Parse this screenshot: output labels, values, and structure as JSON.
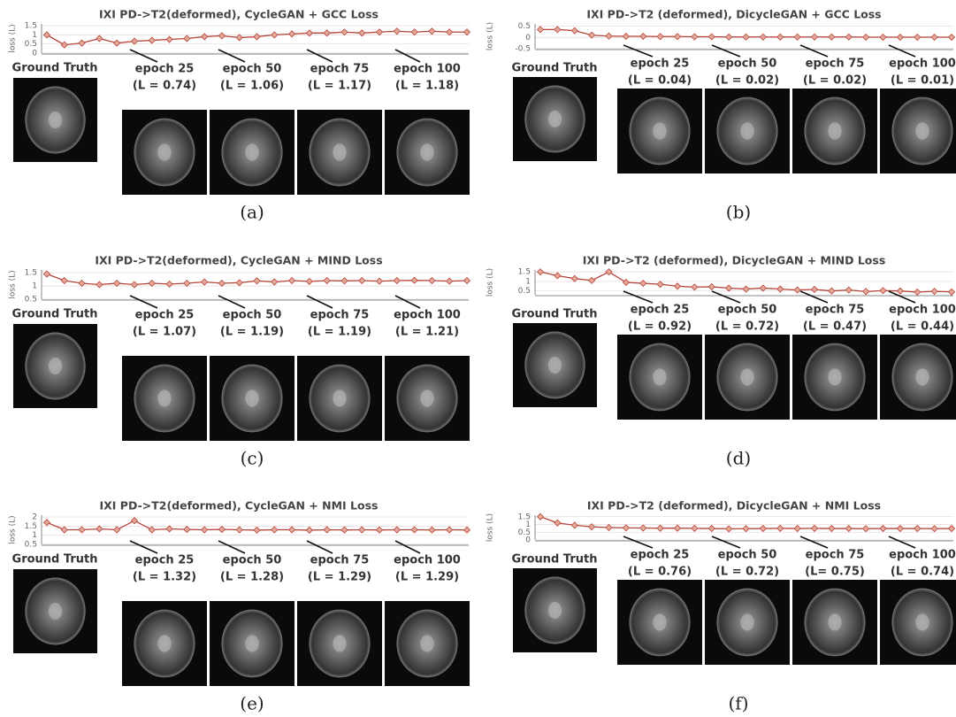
{
  "panels": [
    {
      "title": "IXI PD->T2(deformed), CycleGAN + GCC Loss",
      "ylabel": "loss (L)",
      "yticks": [
        0,
        0.5,
        1,
        1.5
      ],
      "ylim": [
        0,
        1.6
      ],
      "loss": [
        1.0,
        0.45,
        0.55,
        0.8,
        0.55,
        0.65,
        0.7,
        0.75,
        0.8,
        0.9,
        0.95,
        0.85,
        0.9,
        1.0,
        1.05,
        1.1,
        1.1,
        1.15,
        1.1,
        1.15,
        1.2,
        1.15,
        1.2,
        1.15,
        1.15
      ],
      "ground_truth": "Ground Truth",
      "epochs": [
        {
          "label": "epoch 25",
          "loss_label": "(L = 0.74)"
        },
        {
          "label": "epoch 50",
          "loss_label": "(L = 1.06)"
        },
        {
          "label": "epoch 75",
          "loss_label": "(L = 1.17)"
        },
        {
          "label": "epoch 100",
          "loss_label": "(L = 1.18)"
        }
      ],
      "caption": "(a)"
    },
    {
      "title": "IXI PD->T2 (deformed), DicycleGAN + GCC Loss",
      "ylabel": "loss (L)",
      "yticks": [
        -0.5,
        0,
        0.5
      ],
      "ylim": [
        -0.5,
        0.6
      ],
      "loss": [
        0.35,
        0.35,
        0.3,
        0.1,
        0.06,
        0.05,
        0.05,
        0.04,
        0.04,
        0.03,
        0.03,
        0.02,
        0.02,
        0.02,
        0.02,
        0.02,
        0.02,
        0.02,
        0.02,
        0.01,
        0.01,
        0.01,
        0.01,
        0.01,
        0.01
      ],
      "ground_truth": "Ground Truth",
      "epochs": [
        {
          "label": "epoch 25",
          "loss_label": "(L = 0.04)"
        },
        {
          "label": "epoch 50",
          "loss_label": "(L = 0.02)"
        },
        {
          "label": "epoch 75",
          "loss_label": "(L = 0.02)"
        },
        {
          "label": "epoch 100",
          "loss_label": "(L = 0.01)"
        }
      ],
      "caption": "(b)"
    },
    {
      "title": "IXI PD->T2(deformed), CycleGAN + MIND Loss",
      "ylabel": "loss (L)",
      "yticks": [
        0.5,
        1,
        1.5
      ],
      "ylim": [
        0.5,
        1.6
      ],
      "loss": [
        1.45,
        1.2,
        1.1,
        1.05,
        1.1,
        1.05,
        1.1,
        1.07,
        1.1,
        1.15,
        1.1,
        1.12,
        1.19,
        1.15,
        1.2,
        1.17,
        1.2,
        1.19,
        1.2,
        1.18,
        1.2,
        1.21,
        1.2,
        1.18,
        1.2
      ],
      "ground_truth": "Ground Truth",
      "epochs": [
        {
          "label": "epoch 25",
          "loss_label": "(L = 1.07)"
        },
        {
          "label": "epoch 50",
          "loss_label": "(L = 1.19)"
        },
        {
          "label": "epoch 75",
          "loss_label": "(L = 1.19)"
        },
        {
          "label": "epoch 100",
          "loss_label": "(L = 1.21)"
        }
      ],
      "caption": "(c)"
    },
    {
      "title": "IXI PD->T2 (deformed), DicycleGAN + MIND Loss",
      "ylabel": "loss (L)",
      "yticks": [
        0.5,
        1,
        1.5
      ],
      "ylim": [
        0.3,
        1.6
      ],
      "loss": [
        1.5,
        1.3,
        1.15,
        1.05,
        1.5,
        0.95,
        0.9,
        0.85,
        0.75,
        0.7,
        0.72,
        0.65,
        0.6,
        0.65,
        0.6,
        0.55,
        0.58,
        0.5,
        0.55,
        0.47,
        0.52,
        0.5,
        0.44,
        0.48,
        0.45
      ],
      "ground_truth": "Ground Truth",
      "epochs": [
        {
          "label": "epoch 25",
          "loss_label": "(L = 0.92)"
        },
        {
          "label": "epoch 50",
          "loss_label": "(L = 0.72)"
        },
        {
          "label": "epoch 75",
          "loss_label": "(L = 0.47)"
        },
        {
          "label": "epoch 100",
          "loss_label": "(L = 0.44)"
        }
      ],
      "caption": "(d)"
    },
    {
      "title": "IXI PD->T2(deformed), CycleGAN + NMI Loss",
      "ylabel": "loss (L)",
      "yticks": [
        0.5,
        1,
        1.5,
        2
      ],
      "ylim": [
        0.5,
        2.1
      ],
      "loss": [
        1.7,
        1.3,
        1.3,
        1.35,
        1.3,
        1.8,
        1.3,
        1.35,
        1.32,
        1.3,
        1.32,
        1.3,
        1.28,
        1.3,
        1.3,
        1.28,
        1.3,
        1.29,
        1.3,
        1.29,
        1.3,
        1.3,
        1.29,
        1.3,
        1.29
      ],
      "ground_truth": "Ground Truth",
      "epochs": [
        {
          "label": "epoch 25",
          "loss_label": "(L = 1.32)"
        },
        {
          "label": "epoch 50",
          "loss_label": "(L = 1.28)"
        },
        {
          "label": "epoch 75",
          "loss_label": "(L = 1.29)"
        },
        {
          "label": "epoch 100",
          "loss_label": "(L = 1.29)"
        }
      ],
      "caption": "(e)"
    },
    {
      "title": "IXI PD->T2 (deformed), DicycleGAN + NMI Loss",
      "ylabel": "loss (L)",
      "yticks": [
        0,
        0.5,
        1,
        1.5
      ],
      "ylim": [
        0,
        1.6
      ],
      "loss": [
        1.5,
        1.1,
        0.95,
        0.85,
        0.8,
        0.78,
        0.77,
        0.76,
        0.76,
        0.75,
        0.74,
        0.72,
        0.73,
        0.74,
        0.75,
        0.74,
        0.75,
        0.74,
        0.74,
        0.73,
        0.74,
        0.74,
        0.74,
        0.73,
        0.74
      ],
      "ground_truth": "Ground Truth",
      "epochs": [
        {
          "label": "epoch 25",
          "loss_label": "(L = 0.76)"
        },
        {
          "label": "epoch 50",
          "loss_label": "(L = 0.72)"
        },
        {
          "label": "epoch 75",
          "loss_label": "(L= 0.75)"
        },
        {
          "label": "epoch 100",
          "loss_label": "(L = 0.74)"
        }
      ],
      "caption": "(f)"
    }
  ]
}
